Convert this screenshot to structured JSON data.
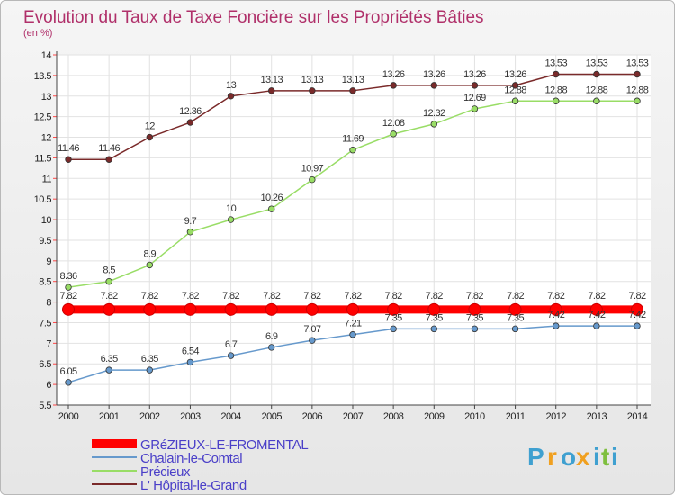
{
  "chart_data": {
    "type": "line",
    "title": "Evolution du Taux de Taxe Foncière sur les Propriétés Bâties",
    "subtitle": "(en %)",
    "x": [
      "2000",
      "2001",
      "2002",
      "2003",
      "2004",
      "2005",
      "2006",
      "2007",
      "2008",
      "2009",
      "2010",
      "2011",
      "2012",
      "2013",
      "2014"
    ],
    "ylim": [
      5.5,
      14
    ],
    "yticks": [
      "5.5",
      "6",
      "6.5",
      "7",
      "7.5",
      "8",
      "8.5",
      "9",
      "9.5",
      "10",
      "10.5",
      "11",
      "11.5",
      "12",
      "12.5",
      "13",
      "13.5",
      "14"
    ],
    "series": [
      {
        "name": "GRéZIEUX-LE-FROMENTAL",
        "color": "#ff0000",
        "values": [
          7.82,
          7.82,
          7.82,
          7.82,
          7.82,
          7.82,
          7.82,
          7.82,
          7.82,
          7.82,
          7.82,
          7.82,
          7.82,
          7.82,
          7.82
        ],
        "labels": [
          "7.82",
          "7.82",
          "7.82",
          "7.82",
          "7.82",
          "7.82",
          "7.82",
          "7.82",
          "7.82",
          "7.82",
          "7.82",
          "7.82",
          "7.82",
          "7.82",
          "7.82"
        ]
      },
      {
        "name": "Chalain-le-Comtal",
        "color": "#6699cc",
        "values": [
          6.05,
          6.35,
          6.35,
          6.54,
          6.7,
          6.9,
          7.07,
          7.21,
          7.35,
          7.35,
          7.35,
          7.35,
          7.42,
          7.42,
          7.42
        ],
        "labels": [
          "6.05",
          "6.35",
          "6.35",
          "6.54",
          "6.7",
          "6.9",
          "7.07",
          "7.21",
          "7.35",
          "7.35",
          "7.35",
          "7.35",
          "7.42",
          "7.42",
          "7.42"
        ]
      },
      {
        "name": "Précieux",
        "color": "#99dd66",
        "values": [
          8.36,
          8.5,
          8.9,
          9.7,
          10,
          10.26,
          10.97,
          11.69,
          12.08,
          12.32,
          12.69,
          12.88,
          12.88,
          12.88,
          12.88
        ],
        "labels": [
          "8.36",
          "8.5",
          "8.9",
          "9.7",
          "10",
          "10.26",
          "10.97",
          "11.69",
          "12.08",
          "12.32",
          "12.69",
          "12.88",
          "12.88",
          "12.88",
          "12.88"
        ]
      },
      {
        "name": "L' Hôpital-le-Grand",
        "color": "#7a2a2a",
        "values": [
          11.46,
          11.46,
          12,
          12.36,
          13,
          13.13,
          13.13,
          13.13,
          13.26,
          13.26,
          13.26,
          13.26,
          13.53,
          13.53,
          13.53
        ],
        "labels": [
          "11.46",
          "11.46",
          "12",
          "12.36",
          "13",
          "13.13",
          "13.13",
          "13.13",
          "13.26",
          "13.26",
          "13.26",
          "13.26",
          "13.53",
          "13.53",
          "13.53"
        ]
      }
    ]
  },
  "logo": {
    "text": "Proxiti",
    "letters": [
      "P",
      "r",
      "o",
      "x",
      "i",
      "t",
      "i"
    ],
    "colors": [
      "#3fa0d0",
      "#f0a020",
      "#3fa0d0",
      "#f0a020",
      "#3fa0d0",
      "#7fbf3f",
      "#3fa0d0"
    ]
  }
}
